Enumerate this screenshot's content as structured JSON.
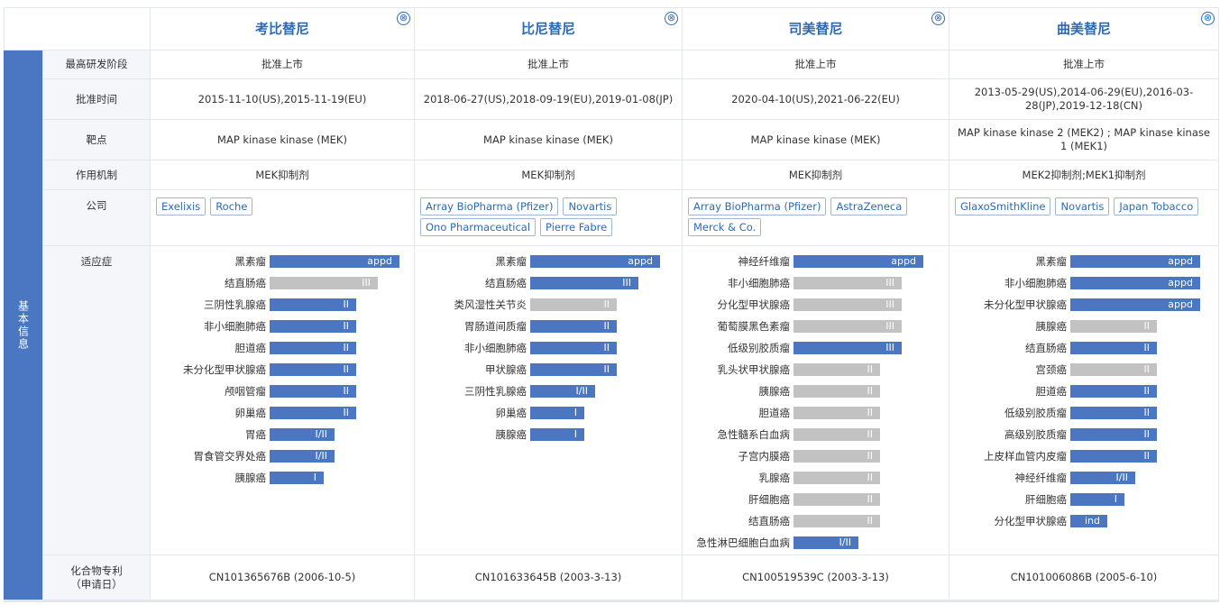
{
  "section_label": "基本信息",
  "row_labels": {
    "stage": "最高研发阶段",
    "approval": "批准时间",
    "target": "靶点",
    "mechanism": "作用机制",
    "company": "公司",
    "indication": "适应症",
    "patent": "化合物专利\n（申请日）"
  },
  "drugs": [
    {
      "name": "考比替尼",
      "close_icon": "⊗",
      "stage": "批准上市",
      "approval": "2015-11-10(US),2015-11-19(EU)",
      "target": "MAP kinase kinase (MEK)",
      "mechanism": "MEK抑制剂",
      "companies": [
        "Exelixis",
        "Roche"
      ],
      "indications": [
        {
          "name": "黑素瘤",
          "phase": "appd",
          "level": 6,
          "color": "blue"
        },
        {
          "name": "结直肠癌",
          "phase": "III",
          "level": 5,
          "color": "gray"
        },
        {
          "name": "三阴性乳腺癌",
          "phase": "II",
          "level": 4,
          "color": "blue"
        },
        {
          "name": "非小细胞肺癌",
          "phase": "II",
          "level": 4,
          "color": "blue"
        },
        {
          "name": "胆道癌",
          "phase": "II",
          "level": 4,
          "color": "blue"
        },
        {
          "name": "未分化型甲状腺癌",
          "phase": "II",
          "level": 4,
          "color": "blue"
        },
        {
          "name": "颅咽管瘤",
          "phase": "II",
          "level": 4,
          "color": "blue"
        },
        {
          "name": "卵巢癌",
          "phase": "II",
          "level": 4,
          "color": "blue"
        },
        {
          "name": "胃癌",
          "phase": "I/II",
          "level": 3,
          "color": "blue"
        },
        {
          "name": "胃食管交界处癌",
          "phase": "I/II",
          "level": 3,
          "color": "blue"
        },
        {
          "name": "胰腺癌",
          "phase": "I",
          "level": 2.5,
          "color": "blue"
        }
      ],
      "patent": "CN101365676B (2006-10-5)"
    },
    {
      "name": "比尼替尼",
      "close_icon": "⊗",
      "stage": "批准上市",
      "approval": "2018-06-27(US),2018-09-19(EU),2019-01-08(JP)",
      "target": "MAP kinase kinase (MEK)",
      "mechanism": "MEK抑制剂",
      "companies": [
        "Array BioPharma (Pfizer)",
        "Novartis",
        "Ono Pharmaceutical",
        "Pierre Fabre"
      ],
      "indications": [
        {
          "name": "黑素瘤",
          "phase": "appd",
          "level": 6,
          "color": "blue"
        },
        {
          "name": "结直肠癌",
          "phase": "III",
          "level": 5,
          "color": "blue"
        },
        {
          "name": "类风湿性关节炎",
          "phase": "II",
          "level": 4,
          "color": "gray"
        },
        {
          "name": "胃肠道间质瘤",
          "phase": "II",
          "level": 4,
          "color": "blue"
        },
        {
          "name": "非小细胞肺癌",
          "phase": "II",
          "level": 4,
          "color": "blue"
        },
        {
          "name": "甲状腺癌",
          "phase": "II",
          "level": 4,
          "color": "blue"
        },
        {
          "name": "三阴性乳腺癌",
          "phase": "I/II",
          "level": 3,
          "color": "blue"
        },
        {
          "name": "卵巢癌",
          "phase": "I",
          "level": 2.5,
          "color": "blue"
        },
        {
          "name": "胰腺癌",
          "phase": "I",
          "level": 2.5,
          "color": "blue"
        }
      ],
      "patent": "CN101633645B (2003-3-13)"
    },
    {
      "name": "司美替尼",
      "close_icon": "⊗",
      "stage": "批准上市",
      "approval": "2020-04-10(US),2021-06-22(EU)",
      "target": "MAP kinase kinase (MEK)",
      "mechanism": "MEK抑制剂",
      "companies": [
        "Array BioPharma (Pfizer)",
        "AstraZeneca",
        "Merck & Co."
      ],
      "indications": [
        {
          "name": "神经纤维瘤",
          "phase": "appd",
          "level": 6,
          "color": "blue"
        },
        {
          "name": "非小细胞肺癌",
          "phase": "III",
          "level": 5,
          "color": "gray"
        },
        {
          "name": "分化型甲状腺癌",
          "phase": "III",
          "level": 5,
          "color": "gray"
        },
        {
          "name": "葡萄膜黑色素瘤",
          "phase": "III",
          "level": 5,
          "color": "gray"
        },
        {
          "name": "低级别胶质瘤",
          "phase": "III",
          "level": 5,
          "color": "blue"
        },
        {
          "name": "乳头状甲状腺癌",
          "phase": "II",
          "level": 4,
          "color": "gray"
        },
        {
          "name": "胰腺癌",
          "phase": "II",
          "level": 4,
          "color": "gray"
        },
        {
          "name": "胆道癌",
          "phase": "II",
          "level": 4,
          "color": "gray"
        },
        {
          "name": "急性髓系白血病",
          "phase": "II",
          "level": 4,
          "color": "gray"
        },
        {
          "name": "子宫内膜癌",
          "phase": "II",
          "level": 4,
          "color": "gray"
        },
        {
          "name": "乳腺癌",
          "phase": "II",
          "level": 4,
          "color": "gray"
        },
        {
          "name": "肝细胞癌",
          "phase": "II",
          "level": 4,
          "color": "gray"
        },
        {
          "name": "结直肠癌",
          "phase": "II",
          "level": 4,
          "color": "gray"
        },
        {
          "name": "急性淋巴细胞白血病",
          "phase": "I/II",
          "level": 3,
          "color": "blue"
        }
      ],
      "patent": "CN100519539C (2003-3-13)"
    },
    {
      "name": "曲美替尼",
      "close_icon": "⊗",
      "stage": "批准上市",
      "approval": "2013-05-29(US),2014-06-29(EU),2016-03-28(JP),2019-12-18(CN)",
      "target": "MAP kinase kinase 2 (MEK2) ; MAP kinase kinase 1 (MEK1)",
      "mechanism": "MEK2抑制剂;MEK1抑制剂",
      "companies": [
        "GlaxoSmithKline",
        "Novartis",
        "Japan Tobacco"
      ],
      "indications": [
        {
          "name": "黑素瘤",
          "phase": "appd",
          "level": 6,
          "color": "blue"
        },
        {
          "name": "非小细胞肺癌",
          "phase": "appd",
          "level": 6,
          "color": "blue"
        },
        {
          "name": "未分化型甲状腺癌",
          "phase": "appd",
          "level": 6,
          "color": "blue"
        },
        {
          "name": "胰腺癌",
          "phase": "II",
          "level": 4,
          "color": "gray"
        },
        {
          "name": "结直肠癌",
          "phase": "II",
          "level": 4,
          "color": "blue"
        },
        {
          "name": "宫颈癌",
          "phase": "II",
          "level": 4,
          "color": "gray"
        },
        {
          "name": "胆道癌",
          "phase": "II",
          "level": 4,
          "color": "blue"
        },
        {
          "name": "低级别胶质瘤",
          "phase": "II",
          "level": 4,
          "color": "blue"
        },
        {
          "name": "高级别胶质瘤",
          "phase": "II",
          "level": 4,
          "color": "blue"
        },
        {
          "name": "上皮样血管内皮瘤",
          "phase": "II",
          "level": 4,
          "color": "blue"
        },
        {
          "name": "神经纤维瘤",
          "phase": "I/II",
          "level": 3,
          "color": "blue"
        },
        {
          "name": "肝细胞癌",
          "phase": "I",
          "level": 2.5,
          "color": "blue"
        },
        {
          "name": "分化型甲状腺癌",
          "phase": "ind",
          "level": 1.7,
          "color": "blue"
        }
      ],
      "patent": "CN101006086B (2005-6-10)"
    }
  ],
  "colors": {
    "accent": "#4a76c2",
    "inactive": "#c2c2c2",
    "link": "#2e6ab3"
  }
}
